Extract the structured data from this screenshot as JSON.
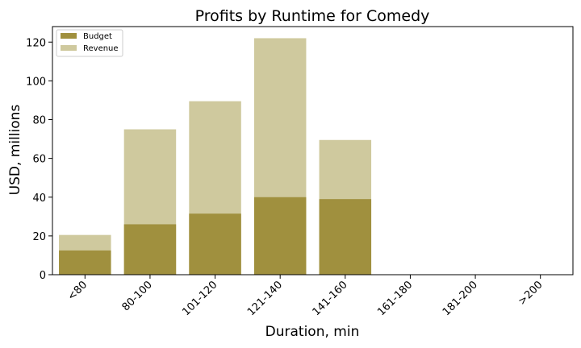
{
  "chart_data": {
    "type": "bar",
    "stacking": "overlay",
    "title": "Profits by Runtime for Comedy",
    "xlabel": "Duration, min",
    "ylabel": "USD, millions",
    "categories": [
      "<80",
      "80-100",
      "101-120",
      "121-140",
      "141-160",
      "161-180",
      "181-200",
      ">200"
    ],
    "ylim": [
      0,
      128
    ],
    "yticks": [
      0,
      20,
      40,
      60,
      80,
      100,
      120
    ],
    "grid": false,
    "legend": "top-left",
    "series": [
      {
        "name": "Budget",
        "color": "#a0903e",
        "values": [
          12.5,
          26,
          31.5,
          40,
          39,
          0,
          0,
          0
        ]
      },
      {
        "name": "Revenue",
        "color": "#cfc99e",
        "values": [
          20.5,
          75,
          89.5,
          122,
          69.5,
          0,
          0,
          0
        ]
      }
    ]
  }
}
